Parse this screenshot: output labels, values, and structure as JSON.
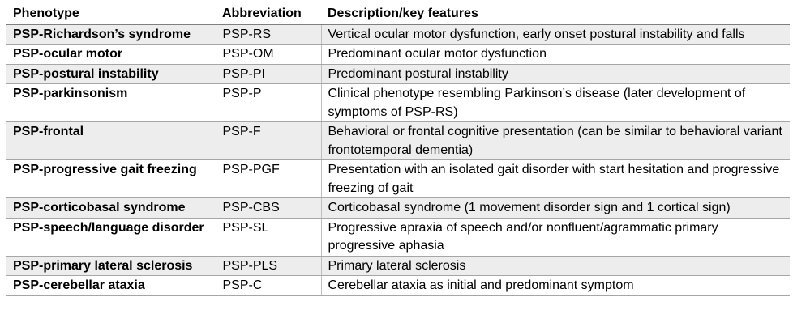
{
  "headers": {
    "phenotype": "Phenotype",
    "abbreviation": "Abbreviation",
    "description": "Description/key features"
  },
  "rows": [
    {
      "phenotype": "PSP-Richardson’s syndrome",
      "abbreviation": "PSP-RS",
      "description": "Vertical ocular motor dysfunction, early onset postural instability and falls",
      "shaded": true
    },
    {
      "phenotype": "PSP-ocular motor",
      "abbreviation": "PSP-OM",
      "description": "Predominant ocular motor dysfunction",
      "shaded": false
    },
    {
      "phenotype": "PSP-postural instability",
      "abbreviation": "PSP-PI",
      "description": "Predominant postural instability",
      "shaded": true
    },
    {
      "phenotype": "PSP-parkinsonism",
      "abbreviation": "PSP-P",
      "description": "Clinical phenotype resembling Parkinson’s disease (later development of symptoms of PSP-RS)",
      "shaded": false
    },
    {
      "phenotype": "PSP-frontal",
      "abbreviation": "PSP-F",
      "description": "Behavioral or frontal cognitive presentation (can be similar to behavioral variant frontotemporal dementia)",
      "shaded": true
    },
    {
      "phenotype": "PSP-progressive gait freezing",
      "abbreviation": "PSP-PGF",
      "description": "Presentation with an isolated gait disorder with start hesitation and progressive freezing of gait",
      "shaded": false
    },
    {
      "phenotype": "PSP-corticobasal syndrome",
      "abbreviation": "PSP-CBS",
      "description": "Corticobasal syndrome (1 movement disorder sign and 1 cortical sign)",
      "shaded": true
    },
    {
      "phenotype": "PSP-speech/language disorder",
      "abbreviation": "PSP-SL",
      "description": "Progressive apraxia of speech and/or nonfluent/agrammatic primary progressive aphasia",
      "shaded": false
    },
    {
      "phenotype": "PSP-primary lateral sclerosis",
      "abbreviation": "PSP-PLS",
      "description": "Primary lateral sclerosis",
      "shaded": true
    },
    {
      "phenotype": "PSP-cerebellar ataxia",
      "abbreviation": "PSP-C",
      "description": "Cerebellar ataxia as initial and predominant symptom",
      "shaded": false
    }
  ]
}
